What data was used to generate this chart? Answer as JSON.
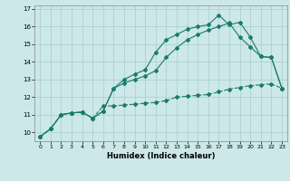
{
  "xlabel": "Humidex (Indice chaleur)",
  "bg_color": "#cce8e8",
  "line_color": "#1a7a6e",
  "grid_color": "#aacccc",
  "xlim": [
    -0.5,
    23.5
  ],
  "ylim": [
    9.5,
    17.2
  ],
  "xticks": [
    0,
    1,
    2,
    3,
    4,
    5,
    6,
    7,
    8,
    9,
    10,
    11,
    12,
    13,
    14,
    15,
    16,
    17,
    18,
    19,
    20,
    21,
    22,
    23
  ],
  "yticks": [
    10,
    11,
    12,
    13,
    14,
    15,
    16,
    17
  ],
  "line1_x": [
    0,
    1,
    2,
    3,
    4,
    5,
    6,
    7,
    8,
    9,
    10,
    11,
    12,
    13,
    14,
    15,
    16,
    17,
    18,
    19,
    20,
    21,
    22,
    23
  ],
  "line1_y": [
    9.75,
    10.2,
    11.0,
    11.1,
    11.15,
    10.8,
    11.5,
    11.5,
    11.55,
    11.6,
    11.65,
    11.7,
    11.8,
    12.0,
    12.05,
    12.1,
    12.15,
    12.3,
    12.45,
    12.55,
    12.65,
    12.7,
    12.75,
    12.5
  ],
  "line2_x": [
    0,
    1,
    2,
    3,
    4,
    5,
    6,
    7,
    8,
    9,
    10,
    11,
    12,
    13,
    14,
    15,
    16,
    17,
    18,
    19,
    20,
    21,
    22,
    23
  ],
  "line2_y": [
    9.75,
    10.2,
    11.0,
    11.1,
    11.15,
    10.8,
    11.2,
    12.5,
    12.8,
    13.0,
    13.2,
    13.5,
    14.25,
    14.8,
    15.25,
    15.55,
    15.8,
    16.0,
    16.2,
    15.4,
    14.85,
    14.3,
    14.25,
    12.5
  ],
  "line3_x": [
    0,
    1,
    2,
    3,
    4,
    5,
    6,
    7,
    8,
    9,
    10,
    11,
    12,
    13,
    14,
    15,
    16,
    17,
    18,
    19,
    20,
    21,
    22,
    23
  ],
  "line3_y": [
    9.75,
    10.2,
    11.0,
    11.1,
    11.15,
    10.8,
    11.2,
    12.5,
    13.0,
    13.3,
    13.55,
    14.55,
    15.25,
    15.55,
    15.85,
    16.0,
    16.1,
    16.65,
    16.1,
    16.25,
    15.4,
    14.3,
    14.25,
    12.5
  ]
}
